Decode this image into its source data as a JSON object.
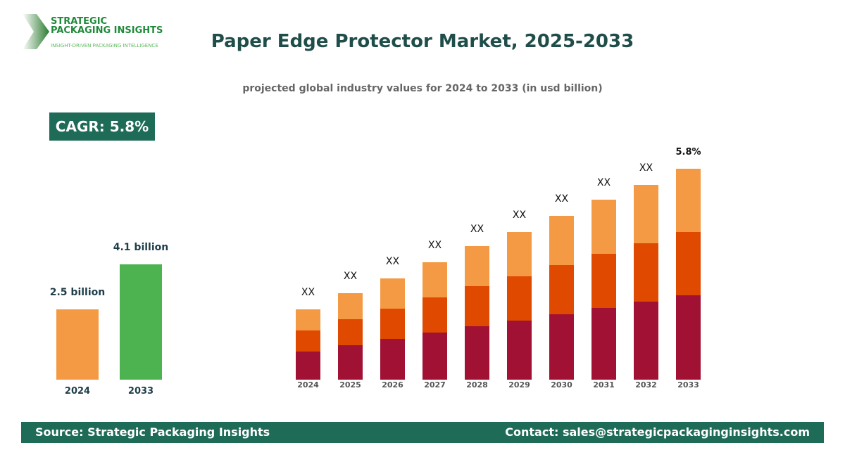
{
  "logo": {
    "line1": "STRATEGIC",
    "line2": "PACKAGING INSIGHTS",
    "tagline": "INSIGHT-DRIVEN PACKAGING INTELLIGENCE"
  },
  "title": "Paper Edge Protector Market, 2025-2033",
  "subtitle": "projected global industry values for 2024 to 2033 (in usd billion)",
  "cagr": "CAGR: 5.8%",
  "footer": {
    "source": "Source: Strategic Packaging Insights",
    "contact": "Contact: sales@strategicpackaginginsights.com"
  },
  "chart_data": [
    {
      "type": "bar",
      "categories": [
        "2024",
        "2033"
      ],
      "values": [
        2.5,
        4.1
      ],
      "data_labels": [
        "2.5 billion",
        "4.1 billion"
      ],
      "colors": [
        "#f49a45",
        "#4cb350"
      ],
      "unit": "usd billion"
    },
    {
      "type": "bar",
      "stacked": true,
      "categories": [
        "2024",
        "2025",
        "2026",
        "2027",
        "2028",
        "2029",
        "2030",
        "2031",
        "2032",
        "2033"
      ],
      "series": [
        {
          "color": "#a01133",
          "values": [
            40,
            49,
            58,
            67,
            76,
            84,
            93,
            102,
            111,
            120
          ]
        },
        {
          "color": "#e04a00",
          "values": [
            30,
            37,
            43,
            50,
            57,
            63,
            70,
            77,
            83,
            90
          ]
        },
        {
          "color": "#f49a45",
          "values": [
            30,
            37,
            43,
            50,
            57,
            63,
            70,
            77,
            83,
            90
          ]
        }
      ],
      "data_labels": [
        "XX",
        "XX",
        "XX",
        "XX",
        "XX",
        "XX",
        "XX",
        "XX",
        "XX",
        "5.8%"
      ],
      "note": "relative units; no axis printed"
    }
  ]
}
